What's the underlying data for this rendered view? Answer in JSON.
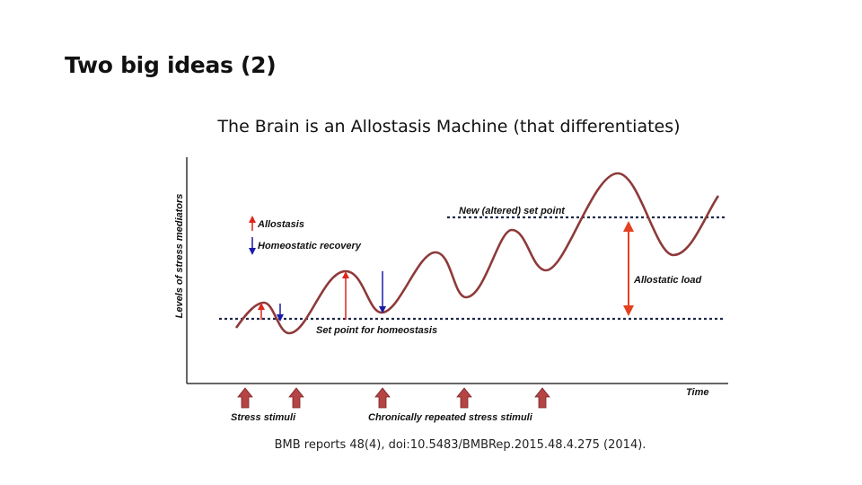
{
  "slide": {
    "title": "Two big ideas (2)",
    "citation": "BMB reports 48(4), doi:10.5483/BMBRep.2015.48.4.275 (2014)."
  },
  "diagram": {
    "title": "The Brain is an Allostasis Machine (that differentiates)",
    "y_axis_label": "Levels of stress mediators",
    "x_axis_label": "Time",
    "legend": {
      "up_label": "Allostasis",
      "down_label": "Homeostatic recovery"
    },
    "set_point_label": "Set point for homeostasis",
    "new_set_point_label": "New (altered) set point",
    "allostatic_load_label": "Allostatic load",
    "stimuli_labels": {
      "single": "Stress stimuli",
      "repeated": "Chronically repeated stress stimuli"
    },
    "colors": {
      "curve": "#8e3a3a",
      "allostasis_arrow": "#e0251b",
      "recovery_arrow": "#1a1aa8",
      "stimulus_arrow": "#b54444",
      "load_arrow": "#e5401f",
      "set_point_line": "#1e2a4a"
    }
  }
}
